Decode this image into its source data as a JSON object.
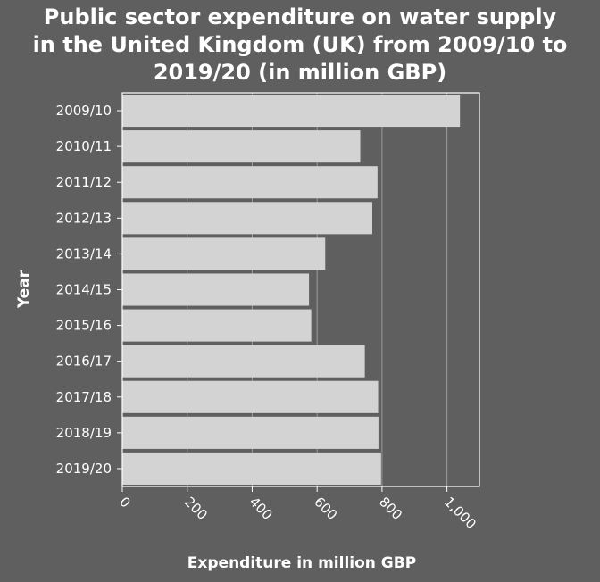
{
  "chart_data": {
    "type": "bar",
    "orientation": "horizontal",
    "title_lines": [
      "Public sector expenditure on water supply",
      "in the United Kingdom (UK) from 2009/10 to",
      "2019/20 (in million GBP)"
    ],
    "xlabel": "Expenditure in million GBP",
    "ylabel": "Year",
    "categories": [
      "2009/10",
      "2010/11",
      "2011/12",
      "2012/13",
      "2013/14",
      "2014/15",
      "2015/16",
      "2016/17",
      "2017/18",
      "2018/19",
      "2019/20"
    ],
    "values": [
      1040,
      733,
      786,
      770,
      625,
      575,
      582,
      747,
      788,
      789,
      797
    ],
    "xlim": [
      0,
      1100
    ],
    "xticks": [
      0,
      200,
      400,
      600,
      800,
      1000
    ],
    "xtick_labels": [
      "0",
      "200",
      "400",
      "600",
      "800",
      "1,000"
    ],
    "grid": "vertical",
    "colors": {
      "background": "#5f5f5f",
      "bar": "#d3d3d3",
      "text": "#ffffff",
      "grid": "#9a9a9a"
    }
  }
}
